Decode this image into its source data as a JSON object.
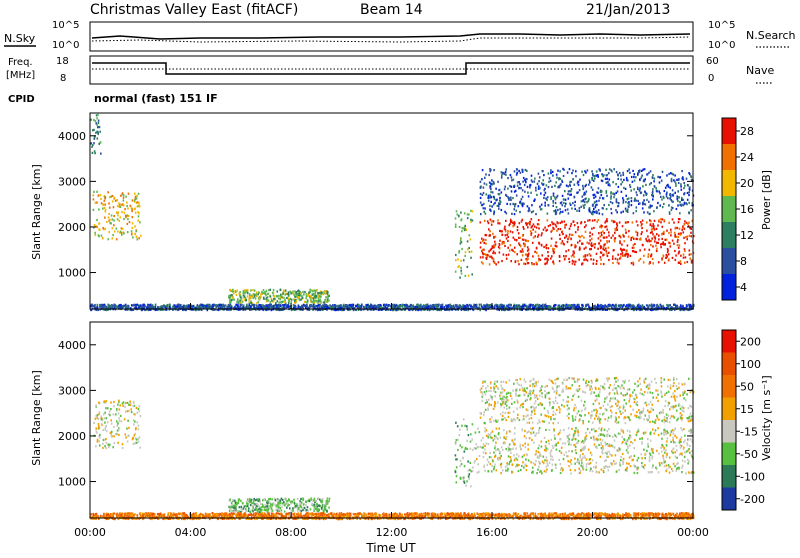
{
  "header": {
    "title": "Christmas Valley East (fitACF)",
    "beam": "Beam 14",
    "date": "21/Jan/2013"
  },
  "top_panels": {
    "nsky_label": "N.Sky",
    "nsearch_label": "N.Search",
    "noise_ticks": [
      "10^5",
      "10^0"
    ],
    "noise_ticks_right": [
      "10^5",
      "10^0"
    ],
    "freq_label_1": "Freq.",
    "freq_label_2": "[MHz]",
    "freq_ticks": [
      "18",
      "8"
    ],
    "nave_label": "Nave",
    "nave_ticks": [
      "60",
      "0"
    ],
    "cpid_label": "CPID",
    "cpid_value": "normal (fast) 151 IF"
  },
  "time_axis": {
    "label": "Time UT",
    "ticks": [
      "00:00",
      "04:00",
      "08:00",
      "12:00",
      "16:00",
      "20:00",
      "00:00"
    ]
  },
  "chart_data": [
    {
      "type": "heatmap",
      "quantity": "Power",
      "xlabel": "Time UT",
      "ylabel": "Slant Range [km]",
      "ylim": [
        200,
        4500
      ],
      "yticks": [
        "4000",
        "3000",
        "2000",
        "1000"
      ],
      "colorbar_label": "Power [dB]",
      "colorbar_ticks": [
        "28",
        "24",
        "20",
        "16",
        "12",
        "8",
        "4"
      ],
      "colors": [
        "#0022dd",
        "#2a4fa0",
        "#2c7f60",
        "#60b850",
        "#f2b800",
        "#f07000",
        "#e81000"
      ],
      "regions": [
        {
          "t0": 0.1,
          "t1": 2.0,
          "r0": 1750,
          "r1": 2800,
          "level": 4
        },
        {
          "t0": 0.0,
          "t1": 0.4,
          "r0": 3600,
          "r1": 4500,
          "level": 2
        },
        {
          "t0": 5.5,
          "t1": 9.5,
          "r0": 350,
          "r1": 650,
          "level": 3
        },
        {
          "t0": 0.0,
          "t1": 24.0,
          "r0": 200,
          "r1": 320,
          "level": 1
        },
        {
          "t0": 15.5,
          "t1": 24.0,
          "r0": 1200,
          "r1": 2200,
          "level": 6
        },
        {
          "t0": 15.5,
          "t1": 24.0,
          "r0": 2300,
          "r1": 3300,
          "level": 1
        },
        {
          "t0": 14.5,
          "t1": 15.2,
          "r0": 900,
          "r1": 2400,
          "level": 3
        }
      ]
    },
    {
      "type": "heatmap",
      "quantity": "Velocity",
      "xlabel": "Time UT",
      "ylabel": "Slant Range [km]",
      "ylim": [
        200,
        4500
      ],
      "yticks": [
        "4000",
        "3000",
        "2000",
        "1000"
      ],
      "colorbar_label": "Velocity [m s⁻¹]",
      "colorbar_ticks": [
        "200",
        "100",
        "50",
        "15",
        "-15",
        "-50",
        "-100",
        "-200"
      ],
      "colors": [
        "#1d3aa0",
        "#2d7a58",
        "#58c040",
        "#c8c8c0",
        "#f2a000",
        "#f07000",
        "#e85000",
        "#e81000"
      ],
      "regions": [
        {
          "t0": 0.1,
          "t1": 2.0,
          "r0": 1750,
          "r1": 2800,
          "level": 3
        },
        {
          "t0": 5.5,
          "t1": 9.5,
          "r0": 350,
          "r1": 650,
          "level": 2
        },
        {
          "t0": 0.0,
          "t1": 24.0,
          "r0": 200,
          "r1": 330,
          "level": 5
        },
        {
          "t0": 15.2,
          "t1": 24.0,
          "r0": 1200,
          "r1": 2200,
          "level": 3
        },
        {
          "t0": 15.5,
          "t1": 24.0,
          "r0": 2300,
          "r1": 3300,
          "level": 3
        },
        {
          "t0": 14.5,
          "t1": 15.2,
          "r0": 900,
          "r1": 2400,
          "level": 2
        }
      ]
    }
  ]
}
